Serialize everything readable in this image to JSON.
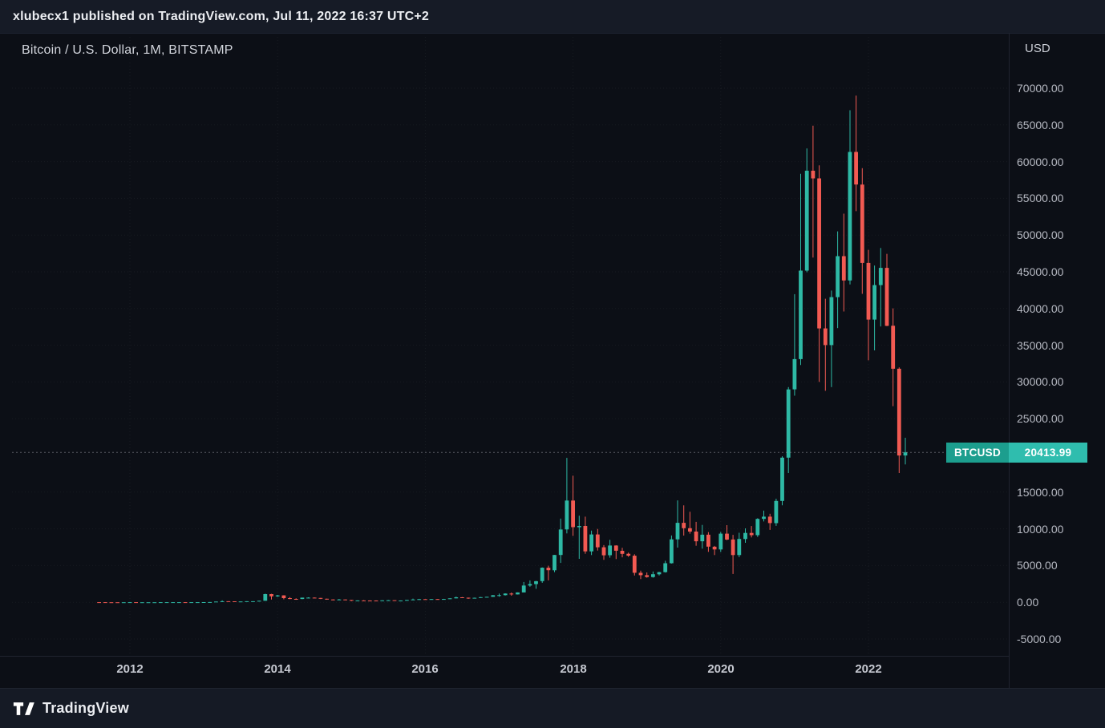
{
  "topbar": {
    "text": "xlubecx1 published on TradingView.com, Jul 11, 2022 16:37 UTC+2"
  },
  "legend": {
    "text": "Bitcoin / U.S. Dollar, 1M, BITSTAMP"
  },
  "price_badge": {
    "symbol": "BTCUSD",
    "price": "20413.99"
  },
  "footer": {
    "brand": "TradingView"
  },
  "colors": {
    "up": "#2eb9a5",
    "down": "#f25a52",
    "badge_symbol_bg": "#1c9e8e",
    "badge_price_bg": "#2fbdae",
    "axis_text": "#b6b9c2",
    "background": "#0c0f16"
  },
  "chart_data": {
    "type": "candlestick",
    "title": "Bitcoin / U.S. Dollar, 1M, BITSTAMP",
    "symbol": "BTCUSD",
    "exchange": "BITSTAMP",
    "interval": "1M",
    "currency": "USD",
    "last_price": 20413.99,
    "y_axis": {
      "min": -5000,
      "max": 70000,
      "tick_step": 5000,
      "ticks": [
        {
          "value": 70000,
          "label": "70000.00"
        },
        {
          "value": 65000,
          "label": "65000.00"
        },
        {
          "value": 60000,
          "label": "60000.00"
        },
        {
          "value": 55000,
          "label": "55000.00"
        },
        {
          "value": 50000,
          "label": "50000.00"
        },
        {
          "value": 45000,
          "label": "45000.00"
        },
        {
          "value": 40000,
          "label": "40000.00"
        },
        {
          "value": 35000,
          "label": "35000.00"
        },
        {
          "value": 30000,
          "label": "30000.00"
        },
        {
          "value": 25000,
          "label": "25000.00"
        },
        {
          "value": 15000,
          "label": "15000.00"
        },
        {
          "value": 10000,
          "label": "10000.00"
        },
        {
          "value": 5000,
          "label": "5000.00"
        },
        {
          "value": 0,
          "label": "0.00"
        },
        {
          "value": -5000,
          "label": "-5000.00"
        }
      ]
    },
    "x_axis": {
      "ticks": [
        {
          "label": "2012",
          "index": 5
        },
        {
          "label": "2014",
          "index": 29
        },
        {
          "label": "2016",
          "index": 53
        },
        {
          "label": "2018",
          "index": 77
        },
        {
          "label": "2020",
          "index": 101
        },
        {
          "label": "2022",
          "index": 125
        }
      ]
    },
    "candle_columns": [
      "month",
      "open",
      "high",
      "low",
      "close"
    ],
    "candles": [
      [
        "2011-08",
        10.9,
        12.0,
        6.5,
        8.2
      ],
      [
        "2011-09",
        8.2,
        8.9,
        4.8,
        5.1
      ],
      [
        "2011-10",
        5.1,
        5.2,
        2.0,
        3.2
      ],
      [
        "2011-11",
        3.2,
        3.6,
        1.9,
        3.0
      ],
      [
        "2011-12",
        3.0,
        4.8,
        2.6,
        4.7
      ],
      [
        "2012-01",
        4.7,
        7.2,
        4.6,
        5.5
      ],
      [
        "2012-02",
        5.5,
        6.2,
        3.8,
        4.9
      ],
      [
        "2012-03",
        4.9,
        5.5,
        4.5,
        4.9
      ],
      [
        "2012-04",
        4.9,
        5.4,
        4.7,
        5.0
      ],
      [
        "2012-05",
        5.0,
        5.3,
        4.9,
        5.2
      ],
      [
        "2012-06",
        5.2,
        7.0,
        5.1,
        6.7
      ],
      [
        "2012-07",
        6.7,
        9.5,
        6.5,
        9.4
      ],
      [
        "2012-08",
        9.4,
        16.4,
        7.6,
        10.1
      ],
      [
        "2012-09",
        10.1,
        12.7,
        9.9,
        12.4
      ],
      [
        "2012-10",
        12.4,
        12.9,
        10.3,
        11.2
      ],
      [
        "2012-11",
        11.2,
        12.7,
        10.5,
        12.5
      ],
      [
        "2012-12",
        12.5,
        13.9,
        12.4,
        13.5
      ],
      [
        "2013-01",
        13.5,
        20.6,
        13.2,
        20.4
      ],
      [
        "2013-02",
        20.4,
        34.9,
        19.8,
        33.4
      ],
      [
        "2013-03",
        33.4,
        94.0,
        33.0,
        93.0
      ],
      [
        "2013-04",
        93.0,
        266.0,
        50.0,
        139.2
      ],
      [
        "2013-05",
        139.2,
        141.0,
        79.0,
        128.8
      ],
      [
        "2013-06",
        128.8,
        132.0,
        88.0,
        97.5
      ],
      [
        "2013-07",
        97.5,
        110.3,
        63.0,
        106.2
      ],
      [
        "2013-08",
        106.2,
        147.0,
        92.0,
        141.0
      ],
      [
        "2013-09",
        141.0,
        147.0,
        109.7,
        141.1
      ],
      [
        "2013-10",
        141.1,
        216.0,
        123.2,
        211.2
      ],
      [
        "2013-11",
        211.2,
        1163.0,
        207.0,
        1113.0
      ],
      [
        "2013-12",
        1113.0,
        1153.0,
        382.0,
        805.0
      ],
      [
        "2014-01",
        805.0,
        1005.0,
        733.0,
        939.0
      ],
      [
        "2014-02",
        939.0,
        960.0,
        400.0,
        573.0
      ],
      [
        "2014-03",
        573.0,
        700.0,
        436.0,
        458.0
      ],
      [
        "2014-04",
        458.0,
        548.0,
        340.0,
        446.0
      ],
      [
        "2014-05",
        446.0,
        634.0,
        421.0,
        628.0
      ],
      [
        "2014-06",
        628.0,
        680.0,
        540.0,
        635.0
      ],
      [
        "2014-07",
        635.0,
        660.0,
        560.0,
        589.0
      ],
      [
        "2014-08",
        589.0,
        605.0,
        442.0,
        478.0
      ],
      [
        "2014-09",
        478.0,
        495.0,
        365.0,
        386.0
      ],
      [
        "2014-10",
        386.0,
        412.0,
        275.0,
        338.0
      ],
      [
        "2014-11",
        338.0,
        460.0,
        320.0,
        378.0
      ],
      [
        "2014-12",
        378.0,
        384.0,
        285.0,
        320.0
      ],
      [
        "2015-01",
        320.0,
        321.0,
        152.0,
        217.0
      ],
      [
        "2015-02",
        217.0,
        265.0,
        210.0,
        254.0
      ],
      [
        "2015-03",
        254.0,
        300.0,
        236.0,
        244.0
      ],
      [
        "2015-04",
        244.0,
        262.0,
        210.0,
        236.0
      ],
      [
        "2015-05",
        236.0,
        250.0,
        226.0,
        230.0
      ],
      [
        "2015-06",
        230.0,
        268.0,
        219.0,
        263.0
      ],
      [
        "2015-07",
        263.0,
        318.0,
        255.0,
        284.0
      ],
      [
        "2015-08",
        284.0,
        288.0,
        198.0,
        230.0
      ],
      [
        "2015-09",
        230.0,
        248.0,
        223.0,
        236.0
      ],
      [
        "2015-10",
        236.0,
        334.0,
        234.0,
        314.0
      ],
      [
        "2015-11",
        314.0,
        502.0,
        299.0,
        377.0
      ],
      [
        "2015-12",
        377.0,
        469.0,
        340.0,
        430.0
      ],
      [
        "2016-01",
        430.0,
        436.0,
        350.0,
        368.0
      ],
      [
        "2016-02",
        368.0,
        448.0,
        365.0,
        437.0
      ],
      [
        "2016-03",
        437.0,
        444.0,
        398.0,
        416.0
      ],
      [
        "2016-04",
        416.0,
        470.0,
        410.0,
        448.0
      ],
      [
        "2016-05",
        448.0,
        547.0,
        438.0,
        531.0
      ],
      [
        "2016-06",
        531.0,
        780.0,
        520.0,
        673.0
      ],
      [
        "2016-07",
        673.0,
        706.0,
        600.0,
        624.0
      ],
      [
        "2016-08",
        624.0,
        639.0,
        465.0,
        575.0
      ],
      [
        "2016-09",
        575.0,
        629.0,
        565.0,
        609.0
      ],
      [
        "2016-10",
        609.0,
        720.0,
        595.0,
        700.0
      ],
      [
        "2016-11",
        700.0,
        755.0,
        670.0,
        745.0
      ],
      [
        "2016-12",
        745.0,
        982.0,
        740.0,
        963.0
      ],
      [
        "2017-01",
        963.0,
        1180.0,
        750.0,
        970.0
      ],
      [
        "2017-02",
        970.0,
        1220.0,
        920.0,
        1189.0
      ],
      [
        "2017-03",
        1189.0,
        1330.0,
        890.0,
        1071.0
      ],
      [
        "2017-04",
        1071.0,
        1347.0,
        1060.0,
        1347.0
      ],
      [
        "2017-05",
        1347.0,
        2760.0,
        1340.0,
        2286.0
      ],
      [
        "2017-06",
        2286.0,
        2980.0,
        2120.0,
        2480.0
      ],
      [
        "2017-07",
        2480.0,
        2920.0,
        1830.0,
        2875.0
      ],
      [
        "2017-08",
        2875.0,
        4750.0,
        2650.0,
        4703.0
      ],
      [
        "2017-09",
        4703.0,
        4980.0,
        2980.0,
        4360.0
      ],
      [
        "2017-10",
        4360.0,
        6450.0,
        4110.0,
        6440.0
      ],
      [
        "2017-11",
        6440.0,
        11400.0,
        5360.0,
        9916.0
      ],
      [
        "2017-12",
        9916.0,
        19666.0,
        9380.0,
        13850.0
      ],
      [
        "2018-01",
        13850.0,
        17234.0,
        9035.0,
        10221.0
      ],
      [
        "2018-02",
        10221.0,
        11786.0,
        5920.0,
        10397.0
      ],
      [
        "2018-03",
        10397.0,
        11660.0,
        6600.0,
        6938.0
      ],
      [
        "2018-04",
        6938.0,
        9760.0,
        6425.0,
        9240.0
      ],
      [
        "2018-05",
        9240.0,
        9990.0,
        7040.0,
        7494.0
      ],
      [
        "2018-06",
        7494.0,
        7780.0,
        5780.0,
        6404.0
      ],
      [
        "2018-07",
        6404.0,
        8500.0,
        6070.0,
        7729.0
      ],
      [
        "2018-08",
        7729.0,
        7760.0,
        5880.0,
        7014.0
      ],
      [
        "2018-09",
        7014.0,
        7410.0,
        6120.0,
        6601.0
      ],
      [
        "2018-10",
        6601.0,
        6760.0,
        6190.0,
        6341.0
      ],
      [
        "2018-11",
        6341.0,
        6540.0,
        3650.0,
        4017.0
      ],
      [
        "2018-12",
        4017.0,
        4300.0,
        3150.0,
        3689.0
      ],
      [
        "2019-01",
        3689.0,
        4060.0,
        3350.0,
        3437.0
      ],
      [
        "2019-02",
        3437.0,
        4190.0,
        3350.0,
        3816.0
      ],
      [
        "2019-03",
        3816.0,
        4140.0,
        3660.0,
        4106.0
      ],
      [
        "2019-04",
        4106.0,
        5650.0,
        4050.0,
        5320.0
      ],
      [
        "2019-05",
        5320.0,
        9090.0,
        5270.0,
        8574.0
      ],
      [
        "2019-06",
        8574.0,
        13880.0,
        7450.0,
        10818.0
      ],
      [
        "2019-07",
        10818.0,
        13200.0,
        9080.0,
        10085.0
      ],
      [
        "2019-08",
        10085.0,
        12325.0,
        9350.0,
        9630.0
      ],
      [
        "2019-09",
        9630.0,
        10950.0,
        7700.0,
        8308.0
      ],
      [
        "2019-10",
        8308.0,
        10540.0,
        7300.0,
        9199.0
      ],
      [
        "2019-11",
        9199.0,
        9550.0,
        6870.0,
        7569.0
      ],
      [
        "2019-12",
        7569.0,
        7680.0,
        6430.0,
        7196.0
      ],
      [
        "2020-01",
        7196.0,
        9570.0,
        6850.0,
        9349.0
      ],
      [
        "2020-02",
        9349.0,
        10500.0,
        8445.0,
        8543.0
      ],
      [
        "2020-03",
        8543.0,
        9180.0,
        3850.0,
        6424.0
      ],
      [
        "2020-04",
        6424.0,
        9460.0,
        6150.0,
        8620.0
      ],
      [
        "2020-05",
        8620.0,
        10070.0,
        8100.0,
        9448.0
      ],
      [
        "2020-06",
        9448.0,
        10380.0,
        8830.0,
        9138.0
      ],
      [
        "2020-07",
        9138.0,
        11440.0,
        8900.0,
        11351.0
      ],
      [
        "2020-08",
        11351.0,
        12480.0,
        11000.0,
        11655.0
      ],
      [
        "2020-09",
        11655.0,
        12050.0,
        9860.0,
        10778.0
      ],
      [
        "2020-10",
        10778.0,
        14100.0,
        10400.0,
        13798.0
      ],
      [
        "2020-11",
        13798.0,
        19880.0,
        13200.0,
        19698.0
      ],
      [
        "2020-12",
        19698.0,
        29300.0,
        17600.0,
        28990.0
      ],
      [
        "2021-01",
        28990.0,
        41950.0,
        28130.0,
        33108.0
      ],
      [
        "2021-02",
        33108.0,
        58352.0,
        32300.0,
        45164.0
      ],
      [
        "2021-03",
        45164.0,
        61800.0,
        44950.0,
        58763.0
      ],
      [
        "2021-04",
        58763.0,
        64895.0,
        46930.0,
        57720.0
      ],
      [
        "2021-05",
        57720.0,
        59500.0,
        30000.0,
        37298.0
      ],
      [
        "2021-06",
        37298.0,
        41330.0,
        28800.0,
        35026.0
      ],
      [
        "2021-07",
        35026.0,
        42448.0,
        29296.0,
        41553.0
      ],
      [
        "2021-08",
        41553.0,
        50500.0,
        37332.0,
        47130.0
      ],
      [
        "2021-09",
        47130.0,
        52920.0,
        39600.0,
        43823.0
      ],
      [
        "2021-10",
        43823.0,
        66999.0,
        43283.0,
        61318.0
      ],
      [
        "2021-11",
        61318.0,
        69000.0,
        53256.0,
        56882.0
      ],
      [
        "2021-12",
        56882.0,
        59100.0,
        42000.0,
        46211.0
      ],
      [
        "2022-01",
        46211.0,
        47990.0,
        32950.0,
        38491.0
      ],
      [
        "2022-02",
        38491.0,
        45850.0,
        34300.0,
        43188.0
      ],
      [
        "2022-03",
        43188.0,
        48240.0,
        37550.0,
        45538.0
      ],
      [
        "2022-04",
        45538.0,
        47450.0,
        37600.0,
        37650.0
      ],
      [
        "2022-05",
        37650.0,
        40020.0,
        26700.0,
        31801.0
      ],
      [
        "2022-06",
        31801.0,
        31980.0,
        17600.0,
        19985.0
      ],
      [
        "2022-07",
        19985.0,
        22400.0,
        18780.0,
        20413.99
      ]
    ]
  }
}
